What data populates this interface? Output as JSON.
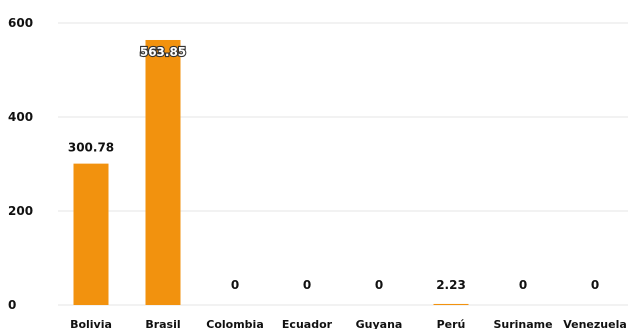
{
  "chart_data": {
    "type": "bar",
    "categories": [
      "Bolivia",
      "Brasil",
      "Colombia",
      "Ecuador",
      "Guyana",
      "Perú",
      "Suriname",
      "Venezuela"
    ],
    "values": [
      300.78,
      563.85,
      0,
      0,
      0,
      2.23,
      0,
      0
    ],
    "data_labels": [
      "300.78",
      "563.85",
      "0",
      "0",
      "0",
      "2.23",
      "0",
      "0"
    ],
    "yticks": [
      0,
      200,
      400,
      600
    ],
    "ylim": [
      0,
      600
    ],
    "title": "",
    "xlabel": "",
    "ylabel": "",
    "grid": true,
    "bar_color": "#F2920E",
    "grid_color": "#E6E6E6"
  }
}
